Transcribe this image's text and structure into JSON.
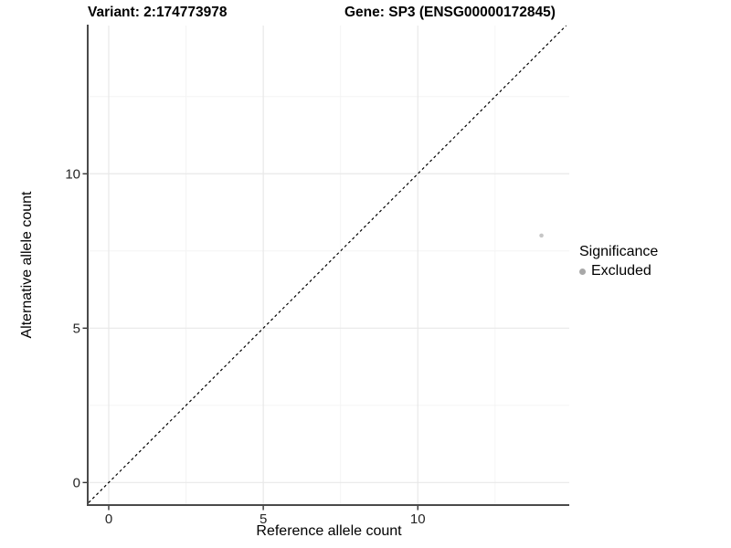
{
  "header": {
    "variant_title": "Variant: 2:174773978",
    "gene_title": "Gene: SP3 (ENSG00000172845)"
  },
  "legend": {
    "title": "Significance",
    "items": [
      {
        "label": "Excluded",
        "color": "#a8a8a8"
      }
    ]
  },
  "colors": {
    "background": "#ffffff",
    "axis_line": "#4a4a4a",
    "tick_mark": "#333333",
    "tick_text": "#262626",
    "grid_major": "#e8e8e8",
    "grid_minor": "#f4f4f4",
    "title_text": "#000000",
    "point_excluded": "#c6c6c6",
    "reference_line": "#000000"
  },
  "chart_data": {
    "type": "scatter",
    "title_left": "Variant: 2:174773978",
    "title_right": "Gene: SP3 (ENSG00000172845)",
    "xlabel": "Reference allele count",
    "ylabel": "Alternative allele count",
    "xlim": [
      -0.65,
      14.9
    ],
    "ylim": [
      -0.7,
      14.8
    ],
    "x_ticks": [
      0,
      5,
      10
    ],
    "y_ticks": [
      0,
      5,
      10
    ],
    "x_minor_ticks": [
      2.5,
      7.5,
      12.5
    ],
    "y_minor_ticks": [
      2.5,
      7.5,
      12.5
    ],
    "grid": "major+minor",
    "legend_position": "right",
    "reference_line": {
      "type": "identity",
      "style": "dashed",
      "dash": [
        3,
        3
      ],
      "color": "#000000"
    },
    "series": [
      {
        "name": "Excluded",
        "color": "#c6c6c6",
        "marker": "circle",
        "point_radius": 2.3,
        "points": [
          {
            "x": 14,
            "y": 8
          }
        ]
      }
    ]
  }
}
